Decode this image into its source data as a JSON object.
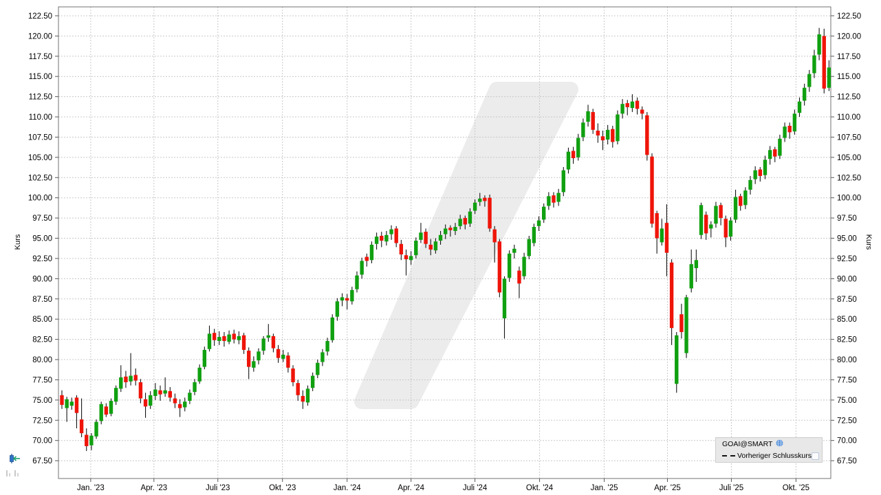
{
  "chart_data": {
    "type": "candlestick",
    "instrument": "GOAI@SMART",
    "interval": "weekly",
    "ylabel_left": "Kurs",
    "ylabel_right": "Kurs",
    "y_axis": {
      "min": 67.5,
      "max": 122.5,
      "step": 2.5,
      "tick_labels": [
        "67.50",
        "70.00",
        "72.50",
        "75.00",
        "77.50",
        "80.00",
        "82.50",
        "85.00",
        "87.50",
        "90.00",
        "92.50",
        "95.00",
        "97.50",
        "100.00",
        "102.50",
        "105.00",
        "107.50",
        "110.00",
        "112.50",
        "115.00",
        "117.50",
        "120.00",
        "122.50"
      ],
      "grid": true
    },
    "x_axis": {
      "first_candle_date": "2022-11-21",
      "candle_count": 157,
      "grid": true,
      "ticks": [
        {
          "label": "Jan. '23",
          "date": "2023-01-01"
        },
        {
          "label": "Apr. '23",
          "date": "2023-04-01"
        },
        {
          "label": "Juli '23",
          "date": "2023-07-01"
        },
        {
          "label": "Okt. '23",
          "date": "2023-10-01"
        },
        {
          "label": "Jan. '24",
          "date": "2024-01-01"
        },
        {
          "label": "Apr. '24",
          "date": "2024-04-01"
        },
        {
          "label": "Juli '24",
          "date": "2024-07-01"
        },
        {
          "label": "Okt. '24",
          "date": "2024-10-01"
        },
        {
          "label": "Jan. '25",
          "date": "2025-01-01"
        },
        {
          "label": "Apr. '25",
          "date": "2025-04-01"
        },
        {
          "label": "Juli '25",
          "date": "2025-07-01"
        },
        {
          "label": "Okt. '25",
          "date": "2025-10-01"
        }
      ]
    },
    "legend": {
      "series_label": "GOAI@SMART",
      "overlay_label": "Vorheriger Schlusskurs",
      "globe_icon": "globe",
      "overlay_line_style": "dashed",
      "checkbox_checked": false,
      "position": "bottom-right"
    },
    "last_close": 116.1,
    "colors": {
      "up": "#10a010",
      "down": "#ef1409",
      "wick": "#141414",
      "grid": "#c8c8c8",
      "axis": "#707070",
      "watermark": "#ececec",
      "legend_bg": "#e8e8e8"
    },
    "candles_format": [
      "open",
      "high",
      "low",
      "close"
    ],
    "candles": [
      [
        75.6,
        76.2,
        73.9,
        74.4
      ],
      [
        74.0,
        75.4,
        72.3,
        75.1
      ],
      [
        74.3,
        75.3,
        73.8,
        74.8
      ],
      [
        75.3,
        75.6,
        71.5,
        73.4
      ],
      [
        72.6,
        75.2,
        70.4,
        70.9
      ],
      [
        70.7,
        71.5,
        68.7,
        69.3
      ],
      [
        69.4,
        70.9,
        68.8,
        70.6
      ],
      [
        70.5,
        72.6,
        70.2,
        72.3
      ],
      [
        72.4,
        74.8,
        72.0,
        74.5
      ],
      [
        74.2,
        74.6,
        72.9,
        73.2
      ],
      [
        73.3,
        75.2,
        73.0,
        74.9
      ],
      [
        74.8,
        76.8,
        74.4,
        76.5
      ],
      [
        76.4,
        79.3,
        76.0,
        77.8
      ],
      [
        77.9,
        78.6,
        76.5,
        77.2
      ],
      [
        77.3,
        80.8,
        76.8,
        78.0
      ],
      [
        78.1,
        78.9,
        76.8,
        77.4
      ],
      [
        77.2,
        77.6,
        74.6,
        75.2
      ],
      [
        75.1,
        75.9,
        72.8,
        74.2
      ],
      [
        74.3,
        76.1,
        73.9,
        75.6
      ],
      [
        75.5,
        77.1,
        75.0,
        76.3
      ],
      [
        76.2,
        76.8,
        74.9,
        75.7
      ],
      [
        75.8,
        77.8,
        75.4,
        76.2
      ],
      [
        76.1,
        76.6,
        74.8,
        75.3
      ],
      [
        75.2,
        75.8,
        74.0,
        74.6
      ],
      [
        74.5,
        75.1,
        72.9,
        74.0
      ],
      [
        74.1,
        75.3,
        73.6,
        74.8
      ],
      [
        74.9,
        76.3,
        74.5,
        75.9
      ],
      [
        76.0,
        77.6,
        75.6,
        77.2
      ],
      [
        77.3,
        79.4,
        77.0,
        79.0
      ],
      [
        79.1,
        81.6,
        78.8,
        81.2
      ],
      [
        81.3,
        84.2,
        81.0,
        83.2
      ],
      [
        83.3,
        83.8,
        81.7,
        82.4
      ],
      [
        82.3,
        83.5,
        81.8,
        82.8
      ],
      [
        82.9,
        83.4,
        81.6,
        82.3
      ],
      [
        82.2,
        83.6,
        81.9,
        83.1
      ],
      [
        83.2,
        83.7,
        82.0,
        82.5
      ],
      [
        82.4,
        83.5,
        81.9,
        82.9
      ],
      [
        83.0,
        83.3,
        80.7,
        81.2
      ],
      [
        81.1,
        81.5,
        77.6,
        79.1
      ],
      [
        79.0,
        80.4,
        78.5,
        79.8
      ],
      [
        79.9,
        81.4,
        79.4,
        81.0
      ],
      [
        81.1,
        82.9,
        80.6,
        82.6
      ],
      [
        82.7,
        84.4,
        82.2,
        83.0
      ],
      [
        82.9,
        83.2,
        80.9,
        81.4
      ],
      [
        81.3,
        81.8,
        79.6,
        80.2
      ],
      [
        80.1,
        81.2,
        79.7,
        80.6
      ],
      [
        80.5,
        80.9,
        78.4,
        79.0
      ],
      [
        78.9,
        79.3,
        76.7,
        77.2
      ],
      [
        77.1,
        77.5,
        74.9,
        75.6
      ],
      [
        75.5,
        76.2,
        73.9,
        74.8
      ],
      [
        74.7,
        76.8,
        74.3,
        76.4
      ],
      [
        76.5,
        78.4,
        76.1,
        78.0
      ],
      [
        78.1,
        80.0,
        77.7,
        79.6
      ],
      [
        79.7,
        81.3,
        79.2,
        80.9
      ],
      [
        81.0,
        82.7,
        80.5,
        82.3
      ],
      [
        82.4,
        85.6,
        82.1,
        85.2
      ],
      [
        85.3,
        87.6,
        84.8,
        87.2
      ],
      [
        87.3,
        88.2,
        86.6,
        87.7
      ],
      [
        87.6,
        88.1,
        86.2,
        87.3
      ],
      [
        87.2,
        89.0,
        86.8,
        88.6
      ],
      [
        88.7,
        90.9,
        88.3,
        90.4
      ],
      [
        90.5,
        92.6,
        90.0,
        92.2
      ],
      [
        92.7,
        93.1,
        91.5,
        92.2
      ],
      [
        92.3,
        94.6,
        91.9,
        94.2
      ],
      [
        94.3,
        95.7,
        93.6,
        95.2
      ],
      [
        95.3,
        95.8,
        93.9,
        94.7
      ],
      [
        94.6,
        95.9,
        94.1,
        95.4
      ],
      [
        95.5,
        96.6,
        94.8,
        96.1
      ],
      [
        96.2,
        96.5,
        93.9,
        94.4
      ],
      [
        94.3,
        94.8,
        92.3,
        93.0
      ],
      [
        92.9,
        93.6,
        90.4,
        92.4
      ],
      [
        92.3,
        93.4,
        91.7,
        92.8
      ],
      [
        92.9,
        95.1,
        92.5,
        94.7
      ],
      [
        94.8,
        96.9,
        94.4,
        95.7
      ],
      [
        95.8,
        96.2,
        93.8,
        94.3
      ],
      [
        94.2,
        94.9,
        92.9,
        93.6
      ],
      [
        93.5,
        95.0,
        93.1,
        94.6
      ],
      [
        94.7,
        95.9,
        94.2,
        95.4
      ],
      [
        95.5,
        96.7,
        94.9,
        96.2
      ],
      [
        96.3,
        96.6,
        95.2,
        96.0
      ],
      [
        95.9,
        96.9,
        95.4,
        96.4
      ],
      [
        96.5,
        97.9,
        96.1,
        97.4
      ],
      [
        97.5,
        97.8,
        96.1,
        96.7
      ],
      [
        96.8,
        98.7,
        96.4,
        98.3
      ],
      [
        98.4,
        99.8,
        98.0,
        99.4
      ],
      [
        99.5,
        100.6,
        99.0,
        99.9
      ],
      [
        100.0,
        100.3,
        98.9,
        99.6
      ],
      [
        100.0,
        100.4,
        95.8,
        96.2
      ],
      [
        96.1,
        96.5,
        92.0,
        94.5
      ],
      [
        94.6,
        94.9,
        87.7,
        88.3
      ],
      [
        85.1,
        90.3,
        82.6,
        90.0
      ],
      [
        90.1,
        93.5,
        89.6,
        93.1
      ],
      [
        93.2,
        94.2,
        92.5,
        93.7
      ],
      [
        91.0,
        91.5,
        87.6,
        89.4
      ],
      [
        90.3,
        93.2,
        89.9,
        92.7
      ],
      [
        92.8,
        95.3,
        92.4,
        94.9
      ],
      [
        94.4,
        96.8,
        94.0,
        96.4
      ],
      [
        96.5,
        97.7,
        95.9,
        97.2
      ],
      [
        97.3,
        99.3,
        96.9,
        98.9
      ],
      [
        99.0,
        100.7,
        98.5,
        100.2
      ],
      [
        100.3,
        100.7,
        98.8,
        99.4
      ],
      [
        99.5,
        101.1,
        99.0,
        100.6
      ],
      [
        100.7,
        103.8,
        100.2,
        103.4
      ],
      [
        103.5,
        106.2,
        103.0,
        105.7
      ],
      [
        105.8,
        106.3,
        104.2,
        104.9
      ],
      [
        105.0,
        107.9,
        104.6,
        107.4
      ],
      [
        107.5,
        109.8,
        107.0,
        109.3
      ],
      [
        109.4,
        111.5,
        108.8,
        110.7
      ],
      [
        110.6,
        111.0,
        107.9,
        108.4
      ],
      [
        108.3,
        109.2,
        106.8,
        107.7
      ],
      [
        107.6,
        108.3,
        105.9,
        107.1
      ],
      [
        107.2,
        109.0,
        106.6,
        108.4
      ],
      [
        108.5,
        108.9,
        106.2,
        106.9
      ],
      [
        107.0,
        110.8,
        106.6,
        110.3
      ],
      [
        110.4,
        112.2,
        109.8,
        111.6
      ],
      [
        111.7,
        112.1,
        110.2,
        111.2
      ],
      [
        111.1,
        112.8,
        110.6,
        111.9
      ],
      [
        112.0,
        112.4,
        110.3,
        111.0
      ],
      [
        110.9,
        111.3,
        109.7,
        110.4
      ],
      [
        110.2,
        110.6,
        104.6,
        105.3
      ],
      [
        105.1,
        105.5,
        96.3,
        96.8
      ],
      [
        98.1,
        98.4,
        93.1,
        95.0
      ],
      [
        94.5,
        97.4,
        94.1,
        96.2
      ],
      [
        96.9,
        99.2,
        90.3,
        93.2
      ],
      [
        92.0,
        92.4,
        81.8,
        83.9
      ],
      [
        77.0,
        83.4,
        75.9,
        83.0
      ],
      [
        85.6,
        86.9,
        82.6,
        83.4
      ],
      [
        80.8,
        88.0,
        80.2,
        87.7
      ],
      [
        88.8,
        93.6,
        88.3,
        91.8
      ],
      [
        91.3,
        93.6,
        89.6,
        92.3
      ],
      [
        95.4,
        99.4,
        94.9,
        99.1
      ],
      [
        97.9,
        98.3,
        94.8,
        95.6
      ],
      [
        96.2,
        97.1,
        95.1,
        96.7
      ],
      [
        96.8,
        99.5,
        96.3,
        99.0
      ],
      [
        99.1,
        99.4,
        96.6,
        97.5
      ],
      [
        97.4,
        97.8,
        93.9,
        95.1
      ],
      [
        95.2,
        97.6,
        94.7,
        97.2
      ],
      [
        97.3,
        101.0,
        96.9,
        100.1
      ],
      [
        100.2,
        100.5,
        98.4,
        99.0
      ],
      [
        99.1,
        101.3,
        98.6,
        100.9
      ],
      [
        101.0,
        102.7,
        100.4,
        102.2
      ],
      [
        102.3,
        103.9,
        101.7,
        103.4
      ],
      [
        103.5,
        103.8,
        102.0,
        102.7
      ],
      [
        102.8,
        105.2,
        102.3,
        104.7
      ],
      [
        104.8,
        106.4,
        104.1,
        105.9
      ],
      [
        106.0,
        106.3,
        104.4,
        105.1
      ],
      [
        105.2,
        107.8,
        104.8,
        107.3
      ],
      [
        107.4,
        109.3,
        106.9,
        108.8
      ],
      [
        108.9,
        109.3,
        107.3,
        108.1
      ],
      [
        108.2,
        110.9,
        107.8,
        110.4
      ],
      [
        110.5,
        112.4,
        110.0,
        111.9
      ],
      [
        112.0,
        114.1,
        111.4,
        113.6
      ],
      [
        113.7,
        115.8,
        113.1,
        115.3
      ],
      [
        115.4,
        118.3,
        114.8,
        117.6
      ],
      [
        117.7,
        121.0,
        117.0,
        120.2
      ],
      [
        120.0,
        120.9,
        112.9,
        113.5
      ],
      [
        113.6,
        117.0,
        113.2,
        116.1
      ]
    ]
  },
  "controls": {
    "candle_tool_icon": "candlestick-with-arrow",
    "volume_bars_icon": "mini-volume-bars"
  }
}
